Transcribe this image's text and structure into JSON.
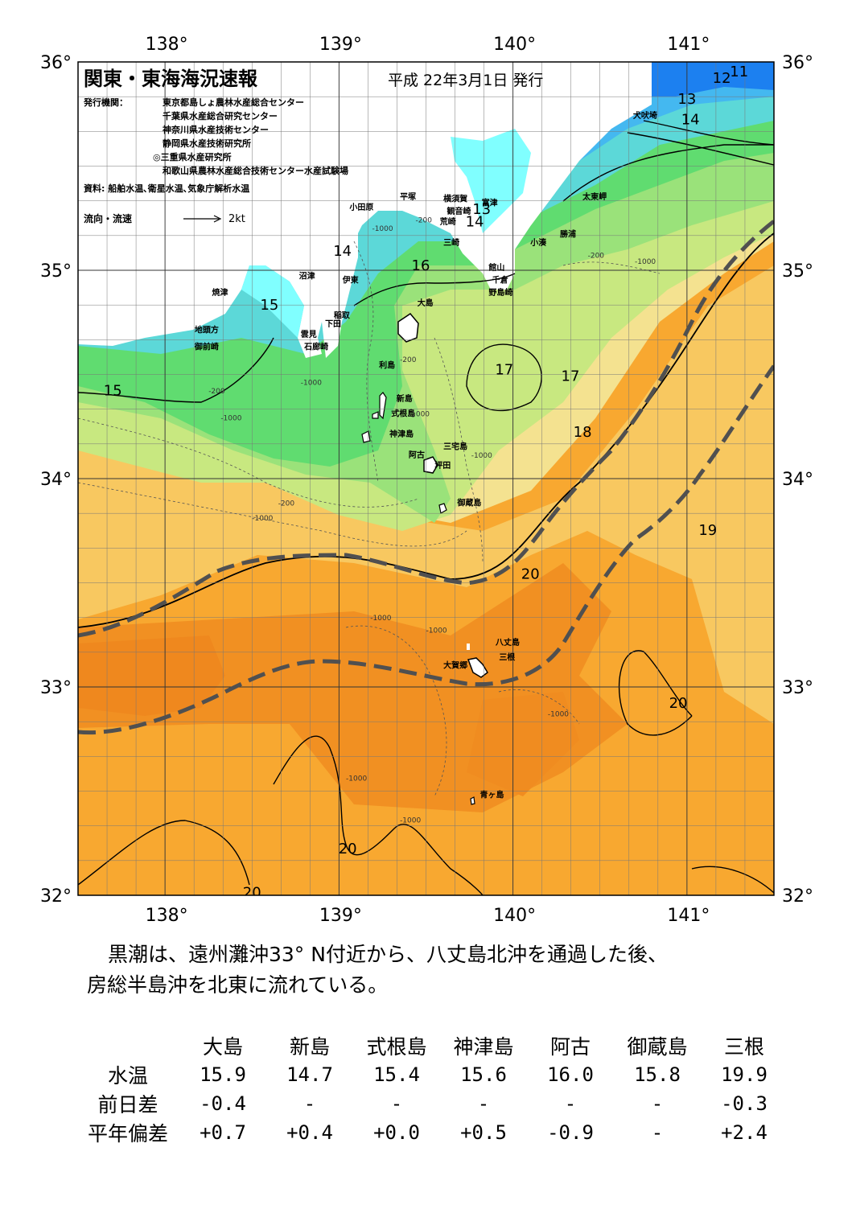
{
  "header": {
    "title": "関東・東海海況速報",
    "date": "平成 22年3月1日 発行",
    "issuers_label": "発行機関：",
    "issuers": [
      "東京都島しょ農林水産総合センター",
      "千葉県水産総合研究センター",
      "神奈川県水産技術センター",
      "静岡県水産技術研究所",
      "◎三重県水産研究所",
      "和歌山県農林水産総合技術センター水産試験場"
    ],
    "source": "資料: 船舶水温､衛星水温､気象庁解析水温",
    "flow_legend_label": "流向・流速",
    "flow_legend_value": "2kt"
  },
  "map": {
    "lon_labels": [
      "138°",
      "139°",
      "140°",
      "141°"
    ],
    "lat_labels": [
      "36°",
      "35°",
      "34°",
      "33°",
      "32°"
    ],
    "isotherm_labels": [
      {
        "text": "11",
        "lon": 141.3,
        "lat": 35.93
      },
      {
        "text": "12",
        "lon": 141.2,
        "lat": 35.9
      },
      {
        "text": "13",
        "lon": 141.0,
        "lat": 35.8
      },
      {
        "text": "14",
        "lon": 141.02,
        "lat": 35.7
      },
      {
        "text": "13",
        "lon": 139.82,
        "lat": 35.27
      },
      {
        "text": "14",
        "lon": 139.78,
        "lat": 35.21
      },
      {
        "text": "14",
        "lon": 139.02,
        "lat": 35.07
      },
      {
        "text": "16",
        "lon": 139.47,
        "lat": 35.0
      },
      {
        "text": "15",
        "lon": 138.6,
        "lat": 34.81
      },
      {
        "text": "15",
        "lon": 137.7,
        "lat": 34.4
      },
      {
        "text": "17",
        "lon": 139.95,
        "lat": 34.5
      },
      {
        "text": "17",
        "lon": 140.33,
        "lat": 34.47
      },
      {
        "text": "18",
        "lon": 140.4,
        "lat": 34.2
      },
      {
        "text": "19",
        "lon": 141.12,
        "lat": 33.73
      },
      {
        "text": "20",
        "lon": 140.1,
        "lat": 33.52
      },
      {
        "text": "20",
        "lon": 140.95,
        "lat": 32.9
      },
      {
        "text": "20",
        "lon": 139.05,
        "lat": 32.2
      },
      {
        "text": "20",
        "lon": 138.5,
        "lat": 31.99
      }
    ],
    "place_labels": [
      {
        "text": "犬吠埼",
        "lon": 140.69,
        "lat": 35.73
      },
      {
        "text": "太東岬",
        "lon": 140.4,
        "lat": 35.34
      },
      {
        "text": "勝浦",
        "lon": 140.27,
        "lat": 35.16
      },
      {
        "text": "小湊",
        "lon": 140.1,
        "lat": 35.12
      },
      {
        "text": "富津",
        "lon": 139.82,
        "lat": 35.31
      },
      {
        "text": "横須賀",
        "lon": 139.6,
        "lat": 35.33
      },
      {
        "text": "平塚",
        "lon": 139.35,
        "lat": 35.34
      },
      {
        "text": "小田原",
        "lon": 139.06,
        "lat": 35.29
      },
      {
        "text": "観音崎",
        "lon": 139.62,
        "lat": 35.27
      },
      {
        "text": "荒崎",
        "lon": 139.58,
        "lat": 35.22
      },
      {
        "text": "三崎",
        "lon": 139.6,
        "lat": 35.12
      },
      {
        "text": "館山",
        "lon": 139.86,
        "lat": 35.0
      },
      {
        "text": "千倉",
        "lon": 139.88,
        "lat": 34.94
      },
      {
        "text": "野島崎",
        "lon": 139.86,
        "lat": 34.88
      },
      {
        "text": "沼津",
        "lon": 138.77,
        "lat": 34.96
      },
      {
        "text": "伊東",
        "lon": 139.02,
        "lat": 34.94
      },
      {
        "text": "焼津",
        "lon": 138.27,
        "lat": 34.88
      },
      {
        "text": "稲取",
        "lon": 138.97,
        "lat": 34.77
      },
      {
        "text": "下田",
        "lon": 138.92,
        "lat": 34.73
      },
      {
        "text": "雲見",
        "lon": 138.78,
        "lat": 34.68
      },
      {
        "text": "石廊崎",
        "lon": 138.8,
        "lat": 34.62
      },
      {
        "text": "地頭方",
        "lon": 138.17,
        "lat": 34.7
      },
      {
        "text": "御前崎",
        "lon": 138.17,
        "lat": 34.62
      },
      {
        "text": "大島",
        "lon": 139.45,
        "lat": 34.83
      },
      {
        "text": "利島",
        "lon": 139.23,
        "lat": 34.53
      },
      {
        "text": "新島",
        "lon": 139.33,
        "lat": 34.37
      },
      {
        "text": "式根島",
        "lon": 139.3,
        "lat": 34.3
      },
      {
        "text": "神津島",
        "lon": 139.29,
        "lat": 34.2
      },
      {
        "text": "阿古",
        "lon": 139.4,
        "lat": 34.1
      },
      {
        "text": "三宅島",
        "lon": 139.6,
        "lat": 34.14
      },
      {
        "text": "坪田",
        "lon": 139.55,
        "lat": 34.05
      },
      {
        "text": "御蔵島",
        "lon": 139.68,
        "lat": 33.87
      },
      {
        "text": "八丈島",
        "lon": 139.9,
        "lat": 33.2
      },
      {
        "text": "三根",
        "lon": 139.92,
        "lat": 33.13
      },
      {
        "text": "大賀郷",
        "lon": 139.6,
        "lat": 33.09
      },
      {
        "text": "青ヶ島",
        "lon": 139.81,
        "lat": 32.47
      }
    ],
    "depth_labels": [
      {
        "text": "-200",
        "lon": 139.44,
        "lat": 35.23
      },
      {
        "text": "-1000",
        "lon": 139.19,
        "lat": 35.19
      },
      {
        "text": "-1000",
        "lon": 140.7,
        "lat": 35.03
      },
      {
        "text": "-200",
        "lon": 140.43,
        "lat": 35.06
      },
      {
        "text": "-200",
        "lon": 139.35,
        "lat": 34.56
      },
      {
        "text": "-1000",
        "lon": 138.78,
        "lat": 34.45
      },
      {
        "text": "-200",
        "lon": 138.25,
        "lat": 34.41
      },
      {
        "text": "-1000",
        "lon": 138.32,
        "lat": 34.28
      },
      {
        "text": "-1000",
        "lon": 139.76,
        "lat": 34.1
      },
      {
        "text": "-1000",
        "lon": 139.4,
        "lat": 34.3
      },
      {
        "text": "-200",
        "lon": 138.65,
        "lat": 33.87
      },
      {
        "text": "-1000",
        "lon": 138.5,
        "lat": 33.8
      },
      {
        "text": "-1000",
        "lon": 139.18,
        "lat": 33.32
      },
      {
        "text": "-1000",
        "lon": 139.5,
        "lat": 33.26
      },
      {
        "text": "-1000",
        "lon": 140.2,
        "lat": 32.86
      },
      {
        "text": "-1000",
        "lon": 139.04,
        "lat": 32.55
      },
      {
        "text": "-1000",
        "lon": 139.35,
        "lat": 32.35
      }
    ],
    "colors": {
      "cold_blue": "#1c80f0",
      "light_blue": "#44b8f0",
      "cyan": "#5cd8d8",
      "land_cyan": "#80ffff",
      "green": "#60dc70",
      "light_green": "#9ae27a",
      "yellow_green": "#c8e880",
      "yellow": "#f4e290",
      "light_orange": "#f8c860",
      "orange": "#f8a830",
      "dark_orange": "#f08c20",
      "deep_orange": "#e87018",
      "kuroshio_line": "#505050"
    }
  },
  "summary": {
    "line1": "黒潮は、遠州灘沖33° N付近から、八丈島北沖を通過した後、",
    "line2": "房総半島沖を北東に流れている。"
  },
  "stats": {
    "columns": [
      "大島",
      "新島",
      "式根島",
      "神津島",
      "阿古",
      "御蔵島",
      "三根"
    ],
    "rows": [
      {
        "label": "水温",
        "values": [
          "15.9",
          "14.7",
          "15.4",
          "15.6",
          "16.0",
          "15.8",
          "19.9"
        ]
      },
      {
        "label": "前日差",
        "values": [
          "-0.4",
          "-",
          "-",
          "-",
          "-",
          "-",
          "-0.3"
        ]
      },
      {
        "label": "平年偏差",
        "values": [
          "+0.7",
          "+0.4",
          "+0.0",
          "+0.5",
          "-0.9",
          "-",
          "+2.4"
        ]
      }
    ]
  }
}
